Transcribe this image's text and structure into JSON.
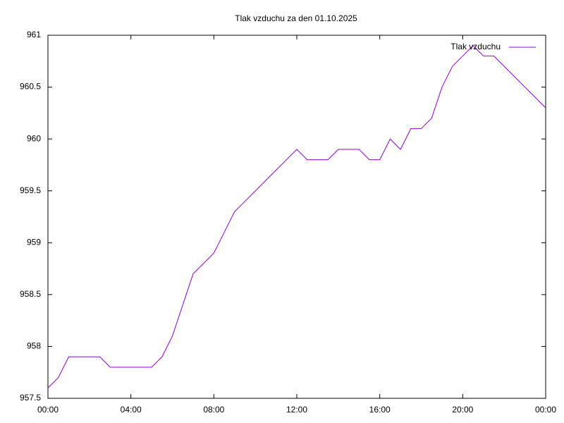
{
  "chart_data": {
    "type": "line",
    "title": "Tlak vzduchu za den 01.10.2025",
    "x": [
      0,
      0.5,
      1,
      1.5,
      2,
      2.5,
      3,
      3.5,
      4,
      4.5,
      5,
      5.5,
      6,
      6.5,
      7,
      7.5,
      8,
      8.5,
      9,
      9.5,
      10,
      10.5,
      11,
      11.5,
      12,
      12.5,
      13,
      13.5,
      14,
      14.5,
      15,
      15.5,
      16,
      16.5,
      17,
      17.5,
      18,
      18.5,
      19,
      19.5,
      20,
      20.5,
      21,
      21.5,
      22,
      22.5,
      23,
      23.5,
      24
    ],
    "series": [
      {
        "name": "Tlak vzduchu",
        "color": "#9400d3",
        "values": [
          957.6,
          957.7,
          957.9,
          957.9,
          957.9,
          957.9,
          957.8,
          957.8,
          957.8,
          957.8,
          957.8,
          957.9,
          958.1,
          958.4,
          958.7,
          958.8,
          958.9,
          959.1,
          959.3,
          959.4,
          959.5,
          959.6,
          959.7,
          959.8,
          959.9,
          959.8,
          959.8,
          959.8,
          959.9,
          959.9,
          959.9,
          959.8,
          959.8,
          960.0,
          959.9,
          960.1,
          960.1,
          960.2,
          960.5,
          960.7,
          960.8,
          960.9,
          960.8,
          960.8,
          960.7,
          960.6,
          960.5,
          960.4,
          960.3
        ]
      }
    ],
    "xlim": [
      0,
      24
    ],
    "xticks": [
      {
        "value": 0,
        "label": "00:00"
      },
      {
        "value": 4,
        "label": "04:00"
      },
      {
        "value": 8,
        "label": "08:00"
      },
      {
        "value": 12,
        "label": "12:00"
      },
      {
        "value": 16,
        "label": "16:00"
      },
      {
        "value": 20,
        "label": "20:00"
      },
      {
        "value": 24,
        "label": "00:00"
      }
    ],
    "ylim": [
      957.5,
      961
    ],
    "yticks": [
      957.5,
      958,
      958.5,
      959,
      959.5,
      960,
      960.5,
      961
    ],
    "legend": "top-right"
  }
}
